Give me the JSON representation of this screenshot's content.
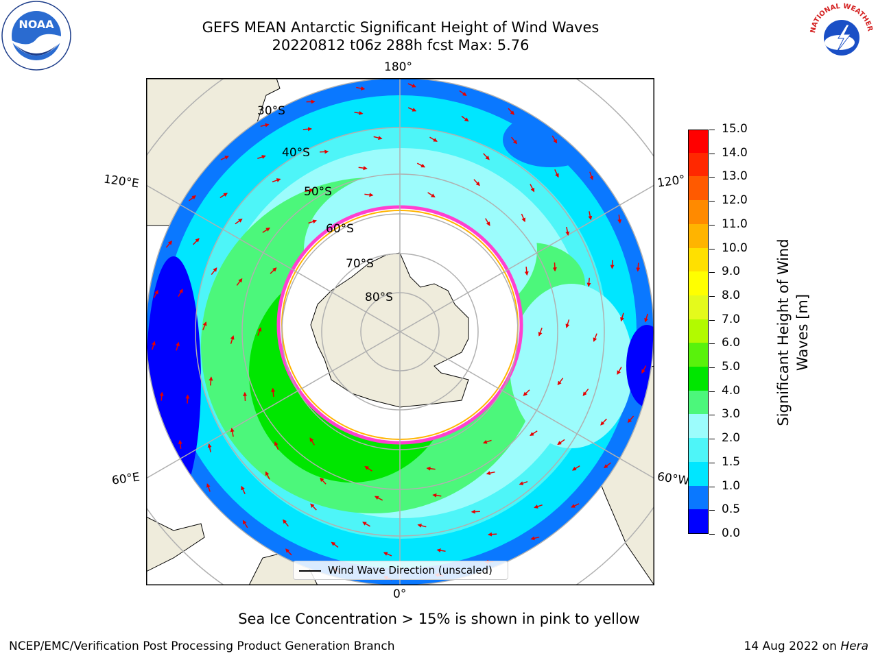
{
  "title_line1": "GEFS MEAN Antarctic Significant Height of Wind Waves",
  "title_line2": "20220812 t06z 288h fcst   Max: 5.76",
  "longitude_labels": {
    "top": "180°",
    "bottom": "0°",
    "upper_left": "120°E",
    "lower_left": "60°E",
    "upper_right": "120°",
    "lower_right": "60°W"
  },
  "latitude_labels": [
    "30°S",
    "40°S",
    "50°S",
    "60°S",
    "70°S",
    "80°S"
  ],
  "colorbar": {
    "label_line1": "Significant Height of Wind",
    "label_line2": "Waves [m]",
    "ticks": [
      "0.0",
      "0.5",
      "1.0",
      "1.5",
      "2.0",
      "3.0",
      "4.0",
      "5.0",
      "6.0",
      "7.0",
      "8.0",
      "9.0",
      "10.0",
      "11.0",
      "12.0",
      "13.0",
      "14.0",
      "15.0"
    ],
    "colors": [
      "#0000ff",
      "#0a78ff",
      "#00e6ff",
      "#4ef5f8",
      "#9cfcfc",
      "#4cf77b",
      "#00e600",
      "#59f20c",
      "#b2fa00",
      "#e4fa1c",
      "#ffff00",
      "#ffe000",
      "#ffb400",
      "#ff8a00",
      "#ff5a00",
      "#ff2800",
      "#ff0000"
    ]
  },
  "legend": {
    "label": "Wind Wave Direction (unscaled)"
  },
  "sea_ice_note": "Sea Ice Concentration > 15% is shown in pink to yellow",
  "footer": {
    "left": "NCEP/EMC/Verification Post Processing Product Generation Branch",
    "date": "14 Aug 2022 on",
    "machine": "Hera"
  },
  "logos": {
    "noaa": "NOAA",
    "nws": "NATIONAL WEATHER SERVICE"
  },
  "map_colors": {
    "land": "#efecdc",
    "ice_shelf": "#ffffff",
    "arrow": "#e60000",
    "grid": "#b0b0b0"
  }
}
